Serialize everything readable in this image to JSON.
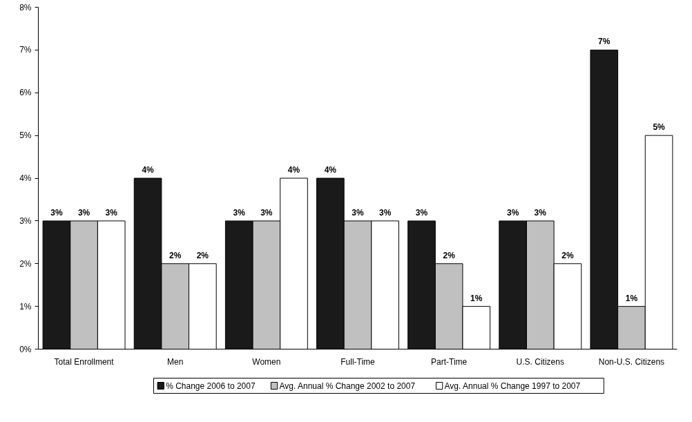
{
  "chart_data": {
    "type": "bar",
    "categories": [
      "Total Enrollment",
      "Men",
      "Women",
      "Full-Time",
      "Part-Time",
      "U.S. Citizens",
      "Non-U.S. Citizens"
    ],
    "series": [
      {
        "name": "% Change 2006 to 2007",
        "color": "#1a1a1a",
        "values": [
          3,
          4,
          3,
          4,
          3,
          3,
          7
        ],
        "value_labels": [
          "3%",
          "4%",
          "3%",
          "4%",
          "3%",
          "3%",
          "7%"
        ]
      },
      {
        "name": "Avg. Annual % Change 2002 to 2007",
        "color": "#c0c0c0",
        "values": [
          3,
          2,
          3,
          3,
          2,
          3,
          1
        ],
        "value_labels": [
          "3%",
          "2%",
          "3%",
          "3%",
          "2%",
          "3%",
          "1%"
        ]
      },
      {
        "name": "Avg. Annual % Change 1997 to 2007",
        "color": "#ffffff",
        "values": [
          3,
          2,
          4,
          3,
          1,
          2,
          5
        ],
        "value_labels": [
          "3%",
          "2%",
          "4%",
          "3%",
          "1%",
          "2%",
          "5%"
        ]
      }
    ],
    "ylim": [
      0,
      8
    ],
    "yticks": [
      {
        "value": 0,
        "label": "0%"
      },
      {
        "value": 1,
        "label": "1%"
      },
      {
        "value": 2,
        "label": "2%"
      },
      {
        "value": 3,
        "label": "3%"
      },
      {
        "value": 4,
        "label": "4%"
      },
      {
        "value": 5,
        "label": "5%"
      },
      {
        "value": 6,
        "label": "6%"
      },
      {
        "value": 7,
        "label": "7%"
      },
      {
        "value": 8,
        "label": "8%"
      }
    ],
    "grid": false,
    "legend": "bottom"
  }
}
